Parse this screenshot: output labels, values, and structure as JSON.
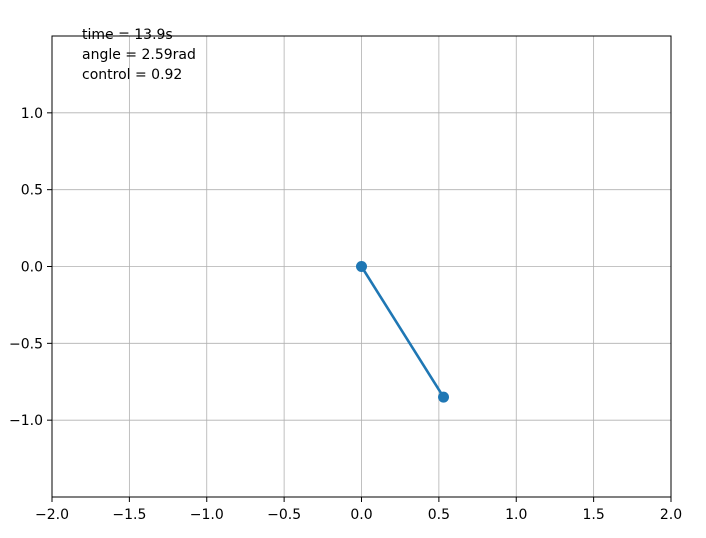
{
  "chart_data": {
    "type": "line",
    "title": "",
    "xlabel": "",
    "ylabel": "",
    "xlim": [
      -2.0,
      2.0
    ],
    "ylim": [
      -1.5,
      1.5
    ],
    "grid": true,
    "x_ticks": [
      -2.0,
      -1.5,
      -1.0,
      -0.5,
      0.0,
      0.5,
      1.0,
      1.5,
      2.0
    ],
    "x_tick_labels": [
      "−2.0",
      "−1.5",
      "−1.0",
      "−0.5",
      "0.0",
      "0.5",
      "1.0",
      "1.5",
      "2.0"
    ],
    "y_ticks": [
      -1.0,
      -0.5,
      0.0,
      0.5,
      1.0
    ],
    "y_tick_labels": [
      "−1.0",
      "−0.5",
      "0.0",
      "0.5",
      "1.0"
    ],
    "series": [
      {
        "color": "#1f77b4",
        "marker": "circle",
        "points": [
          {
            "x": 0.0,
            "y": 0.0
          },
          {
            "x": 0.53,
            "y": -0.85
          }
        ]
      }
    ],
    "annotations": [
      "time = 13.9s",
      "angle = 2.59rad",
      "control = 0.92"
    ]
  }
}
